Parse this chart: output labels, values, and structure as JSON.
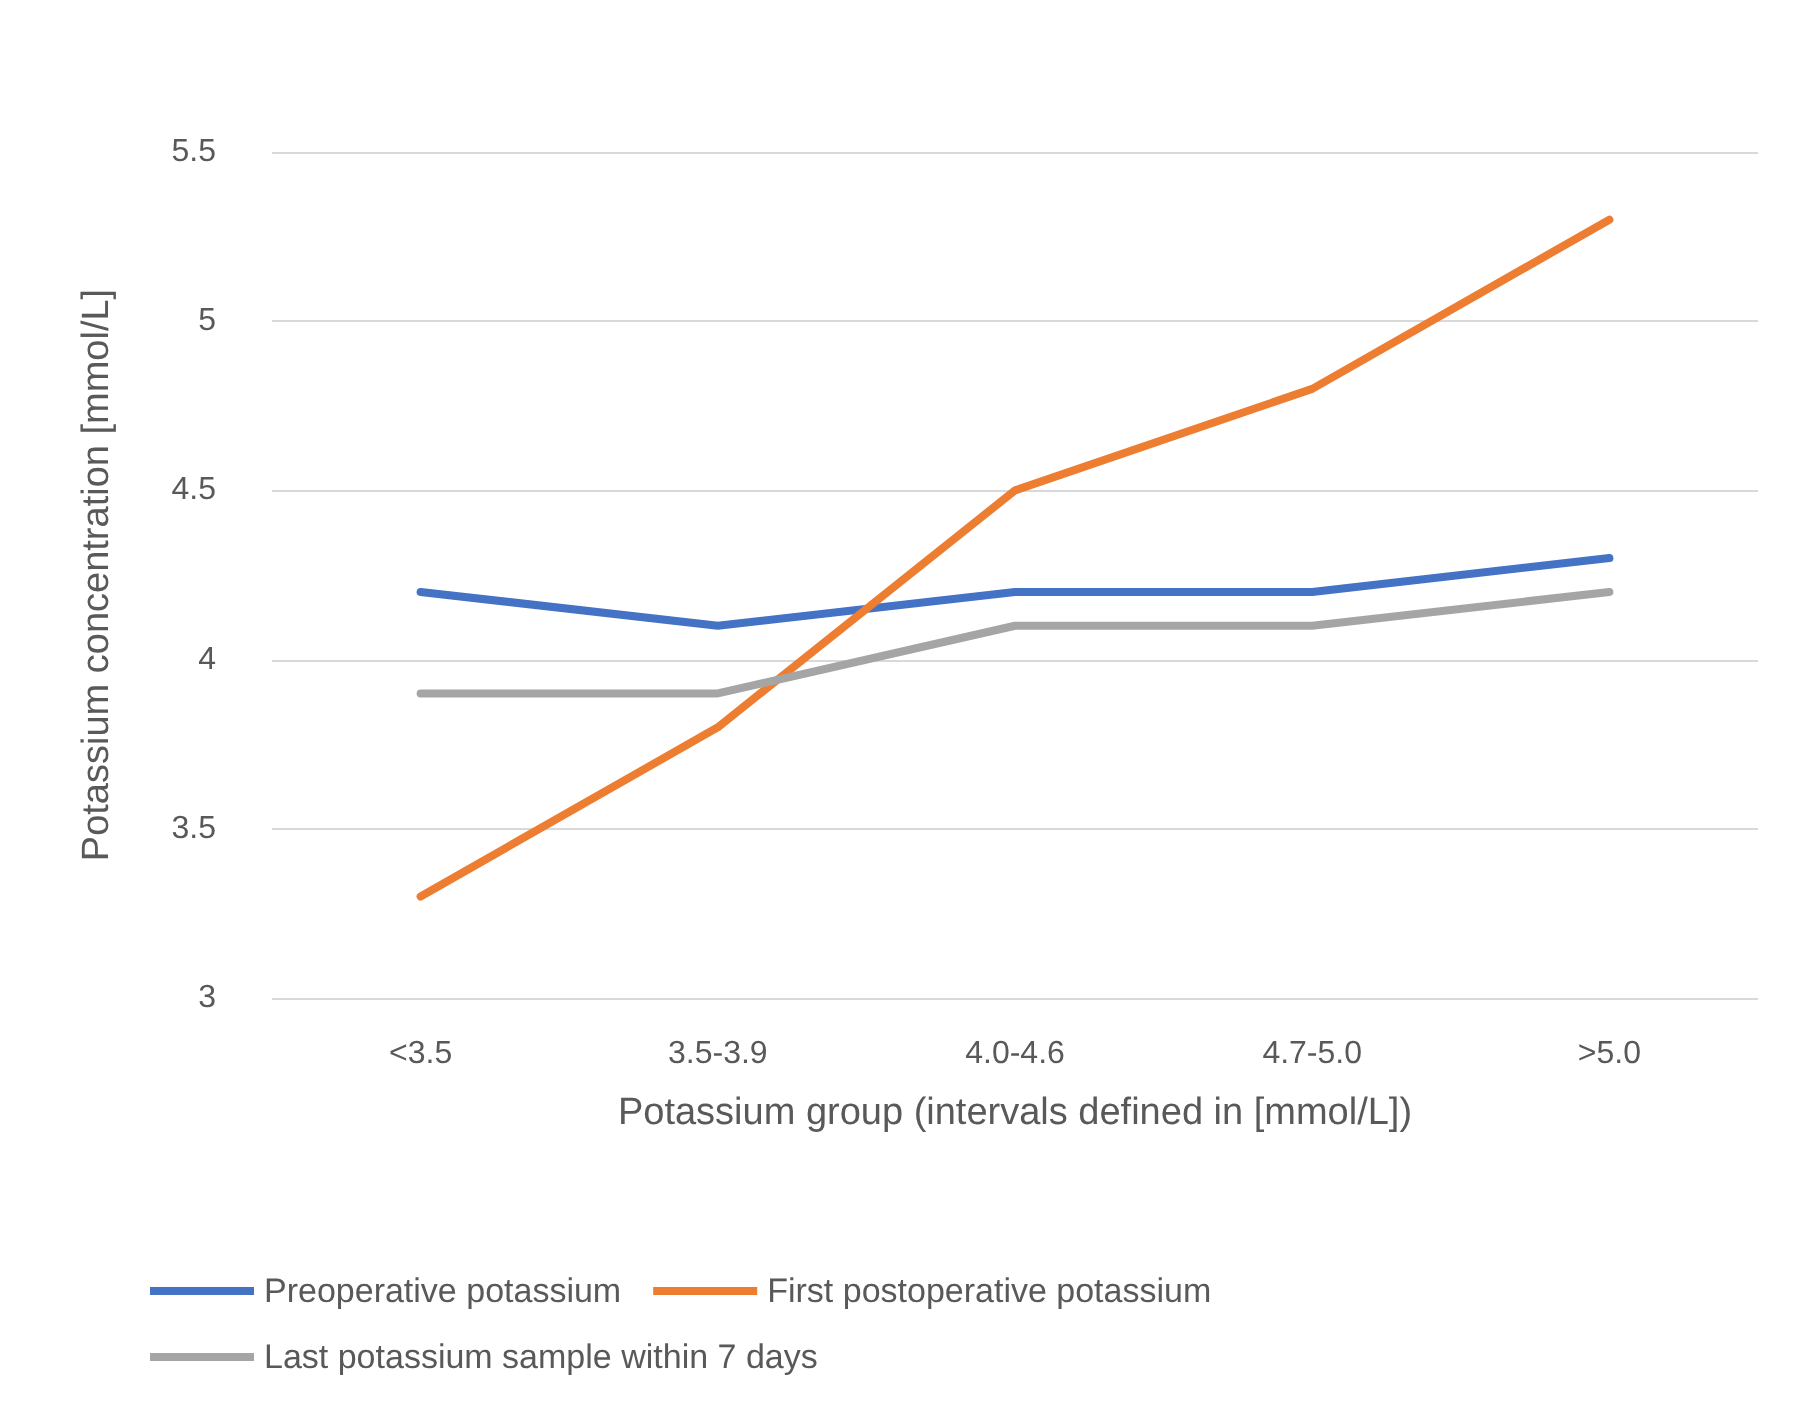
{
  "chart_data": {
    "type": "line",
    "xlabel": "Potassium group (intervals defined in [mmol/L])",
    "ylabel": "Potassium concentration [mmol/L]",
    "categories": [
      "<3.5",
      "3.5-3.9",
      "4.0-4.6",
      "4.7-5.0",
      ">5.0"
    ],
    "series": [
      {
        "name": "Preoperative potassium",
        "color": "#4472c4",
        "values": [
          4.2,
          4.1,
          4.2,
          4.2,
          4.3
        ]
      },
      {
        "name": "First postoperative potassium",
        "color": "#ed7d31",
        "values": [
          3.3,
          3.8,
          4.5,
          4.8,
          5.3
        ]
      },
      {
        "name": "Last potassium sample within 7 days",
        "color": "#a5a5a5",
        "values": [
          3.9,
          3.9,
          4.1,
          4.1,
          4.2
        ]
      }
    ],
    "ylim": [
      3,
      5.5
    ],
    "yticks": [
      3,
      3.5,
      4,
      4.5,
      5,
      5.5
    ],
    "grid": "y",
    "legend": "bottom",
    "marker": "none",
    "line_style": "solid"
  }
}
